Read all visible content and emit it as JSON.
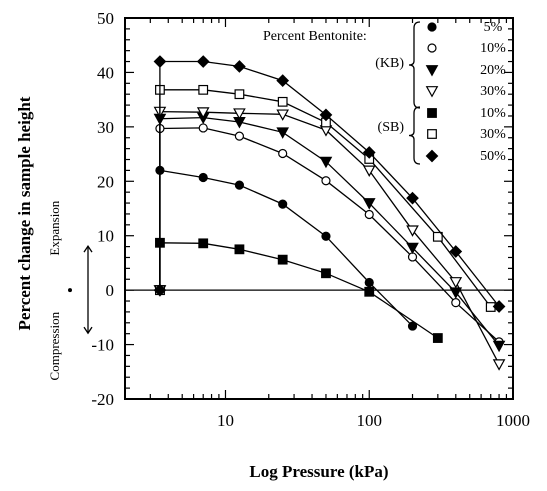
{
  "chart_data": {
    "type": "line",
    "xlabel": "Log Pressure (kPa)",
    "ylabel": "Percent change in sample height",
    "x_scale": "log",
    "xlim": [
      2,
      1000
    ],
    "ylim": [
      -20,
      50
    ],
    "x_ticks": [
      "10",
      "100",
      "1000"
    ],
    "y_ticks": [
      "-20",
      "-10",
      "0",
      "10",
      "20",
      "30",
      "40",
      "50"
    ],
    "annotations": {
      "expansion": "Expansion",
      "compression": "Compression"
    },
    "legend": {
      "title": "Percent Bentonite:",
      "groups": [
        {
          "label": "(KB)",
          "entries": [
            0,
            1,
            2,
            3
          ]
        },
        {
          "label": "(SB)",
          "entries": [
            4,
            5,
            6
          ]
        }
      ]
    },
    "series": [
      {
        "name": "5%",
        "group": "KB",
        "marker": "filled-circle",
        "x": [
          3.5,
          3.5,
          7,
          12.5,
          25,
          50,
          100,
          200
        ],
        "y": [
          0,
          22,
          20.7,
          19.3,
          15.8,
          9.9,
          1.4,
          -6.6
        ]
      },
      {
        "name": "10%",
        "group": "KB",
        "marker": "open-circle",
        "x": [
          3.5,
          3.5,
          7,
          12.5,
          25,
          50,
          100,
          200,
          400,
          800
        ],
        "y": [
          0,
          29.7,
          29.8,
          28.3,
          25.1,
          20.1,
          13.9,
          6.1,
          -2.3,
          -9.5
        ]
      },
      {
        "name": "20%",
        "group": "KB",
        "marker": "filled-triangle",
        "x": [
          3.5,
          3.5,
          7,
          12.5,
          25,
          50,
          100,
          200,
          400,
          800
        ],
        "y": [
          0,
          31.5,
          31.7,
          30.9,
          29,
          23.6,
          16,
          7.8,
          -0.4,
          -10.2
        ]
      },
      {
        "name": "30%",
        "group": "KB",
        "marker": "open-triangle",
        "x": [
          3.5,
          3.5,
          7,
          12.5,
          25,
          50,
          100,
          200,
          400,
          800
        ],
        "y": [
          0,
          32.8,
          32.7,
          32.5,
          32.3,
          29.4,
          22,
          11,
          1.5,
          -13.6
        ]
      },
      {
        "name": "10%",
        "group": "SB",
        "marker": "filled-square",
        "x": [
          3.5,
          3.5,
          7,
          12.5,
          25,
          50,
          100,
          300
        ],
        "y": [
          0,
          8.7,
          8.6,
          7.5,
          5.6,
          3.1,
          -0.3,
          -8.8
        ]
      },
      {
        "name": "30%",
        "group": "SB",
        "marker": "open-square",
        "x": [
          3.5,
          3.5,
          7,
          12.5,
          25,
          50,
          100,
          300,
          700
        ],
        "y": [
          0,
          36.8,
          36.8,
          36,
          34.6,
          30.8,
          24.1,
          9.8,
          -3.1
        ]
      },
      {
        "name": "50%",
        "group": "SB",
        "marker": "filled-diamond",
        "x": [
          3.5,
          3.5,
          7,
          12.5,
          25,
          50,
          100,
          200,
          400,
          800
        ],
        "y": [
          0,
          42,
          42,
          41.1,
          38.5,
          32.2,
          25.3,
          16.9,
          7.1,
          -3
        ]
      }
    ]
  }
}
